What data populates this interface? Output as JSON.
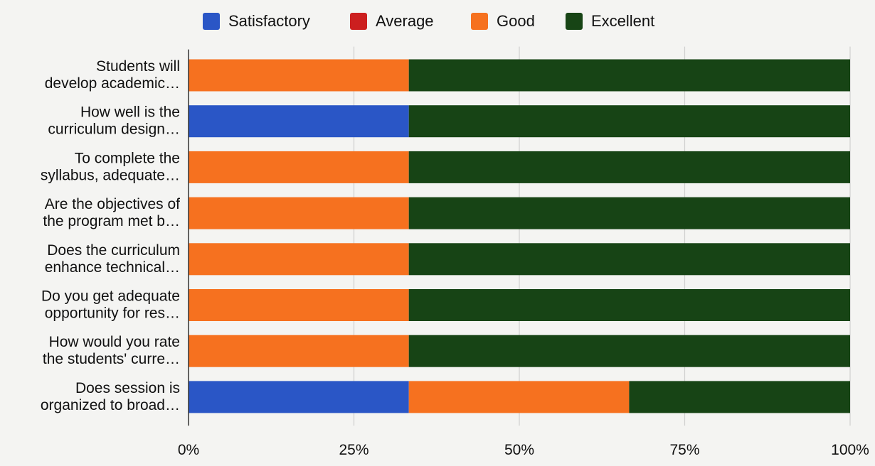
{
  "chart_data": {
    "type": "bar",
    "orientation": "horizontal",
    "stacked": "percent",
    "title": "",
    "xlabel": "",
    "ylabel": "",
    "categories": [
      [
        "Students will",
        "develop academic…"
      ],
      [
        "How well is the",
        "curriculum design…"
      ],
      [
        "To complete the",
        "syllabus, adequate…"
      ],
      [
        "Are the objectives of",
        "the program met b…"
      ],
      [
        "Does the curriculum",
        "enhance technical…"
      ],
      [
        "Do you get adequate",
        "opportunity for res…"
      ],
      [
        "How would you rate",
        "the students' curre…"
      ],
      [
        "Does session is",
        "organized to broad…"
      ]
    ],
    "series": [
      {
        "name": "Satisfactory",
        "color": "#2a56c6",
        "values": [
          0,
          33.3,
          0,
          0,
          0,
          0,
          0,
          33.3
        ]
      },
      {
        "name": "Average",
        "color": "#cc1f1f",
        "values": [
          0,
          0,
          0,
          0,
          0,
          0,
          0,
          0
        ]
      },
      {
        "name": "Good",
        "color": "#f6711f",
        "values": [
          33.3,
          0,
          33.3,
          33.3,
          33.3,
          33.3,
          33.3,
          33.3
        ]
      },
      {
        "name": "Excellent",
        "color": "#174415",
        "values": [
          66.7,
          66.7,
          66.7,
          66.7,
          66.7,
          66.7,
          66.7,
          33.4
        ]
      }
    ],
    "xlim": [
      0,
      100
    ],
    "xticks": [
      "0%",
      "25%",
      "50%",
      "75%",
      "100%"
    ],
    "grid": true,
    "legend": "top"
  }
}
